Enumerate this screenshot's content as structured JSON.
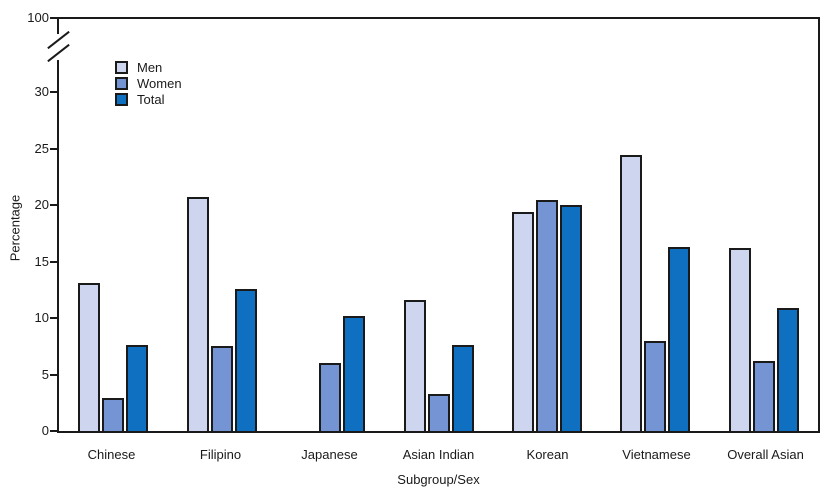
{
  "chart_data": {
    "type": "bar",
    "title": "",
    "xlabel": "Subgroup/Sex",
    "ylabel": "Percentage",
    "categories": [
      "Chinese",
      "Filipino",
      "Japanese",
      "Asian Indian",
      "Korean",
      "Vietnamese",
      "Overall Asian"
    ],
    "series": [
      {
        "name": "Men",
        "color": "#cdd5ef",
        "values": [
          13.1,
          20.7,
          null,
          11.6,
          19.4,
          24.4,
          16.2
        ]
      },
      {
        "name": "Women",
        "color": "#7494d3",
        "values": [
          2.9,
          7.5,
          6.0,
          3.3,
          20.4,
          8.0,
          6.2
        ]
      },
      {
        "name": "Total",
        "color": "#0f6fc0",
        "values": [
          7.6,
          12.6,
          10.2,
          7.6,
          20.0,
          16.3,
          10.9
        ]
      }
    ],
    "ylim": [
      0,
      30
    ],
    "y_ticks": [
      0,
      5,
      10,
      15,
      20,
      25,
      30
    ],
    "y_axis_break": {
      "shown": true,
      "upper_tick_label": "100"
    },
    "grid": false,
    "legend_position": "top-left-inside",
    "bar_outline_color": "#1a1a1a"
  },
  "legend": {
    "items": [
      {
        "label": "Men",
        "color": "#cdd5ef"
      },
      {
        "label": "Women",
        "color": "#7494d3"
      },
      {
        "label": "Total",
        "color": "#0f6fc0"
      }
    ]
  }
}
